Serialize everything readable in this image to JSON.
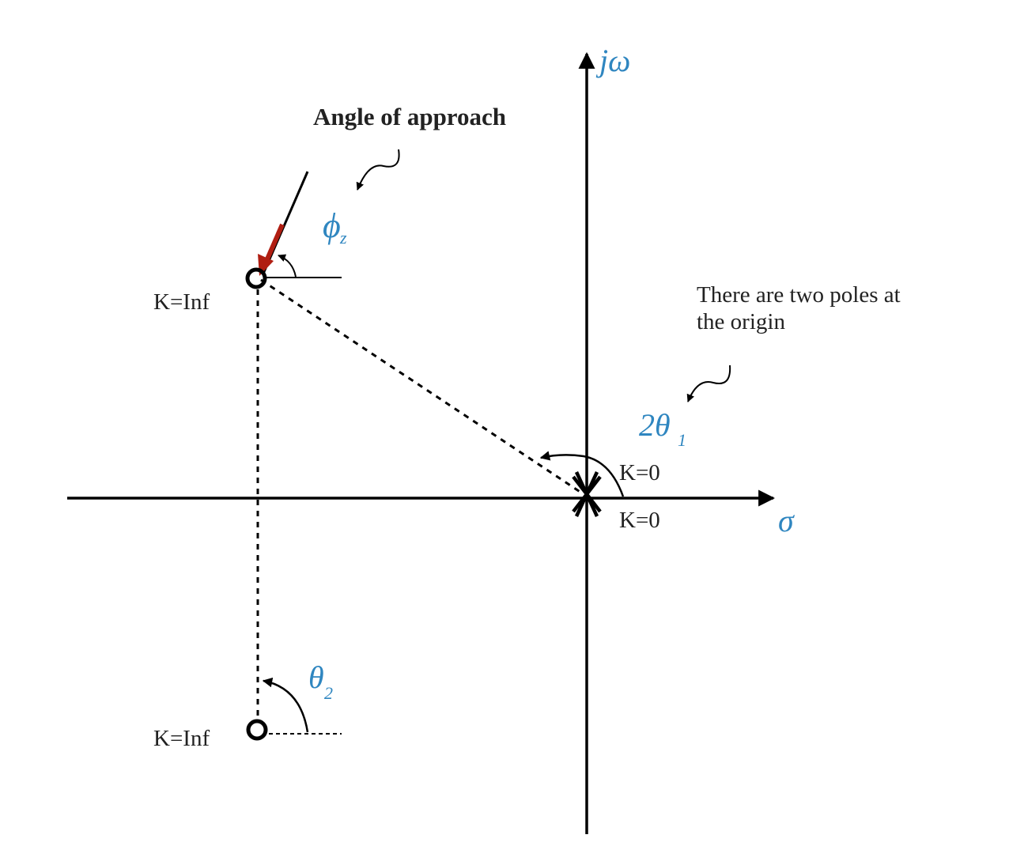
{
  "axes": {
    "imag_label": "jω",
    "real_label": "σ"
  },
  "annotations": {
    "approach_title": "Angle of approach",
    "phi_symbol": "ϕ",
    "phi_subscript": "z",
    "theta2_symbol": "θ",
    "theta2_subscript": "2",
    "two_theta_symbol": "2θ",
    "two_theta_subscript": "1",
    "poles_note_line1": "There are two poles at",
    "poles_note_line2": "the origin"
  },
  "zeros": {
    "upper_label": "K=Inf",
    "lower_label": "K=Inf"
  },
  "poles": {
    "label_upper": "K=0",
    "label_lower": "K=0"
  },
  "colors": {
    "accent_blue": "#2f86c0",
    "arrow_red": "#b01e12",
    "ink": "#000000"
  }
}
